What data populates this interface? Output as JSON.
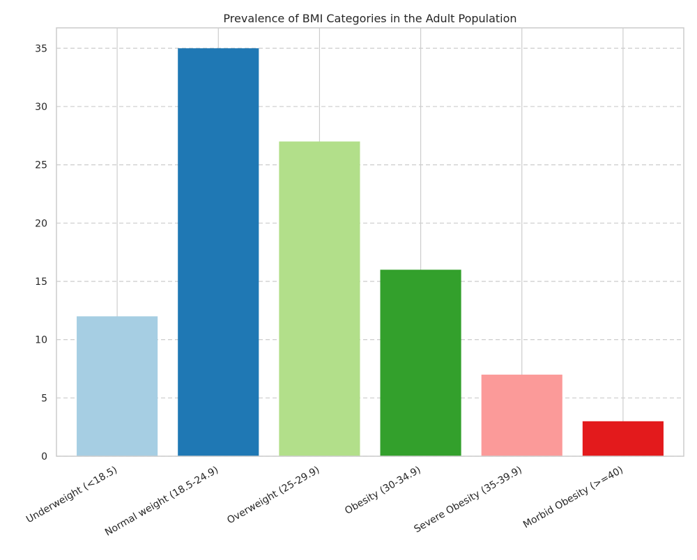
{
  "chart_data": {
    "type": "bar",
    "title": "Prevalence of BMI Categories in the Adult Population",
    "xlabel": "",
    "ylabel": "",
    "categories": [
      "Underweight (<18.5)",
      "Normal weight (18.5-24.9)",
      "Overweight (25-29.9)",
      "Obesity (30-34.9)",
      "Severe Obesity (35-39.9)",
      "Morbid Obesity (>=40)"
    ],
    "values": [
      12,
      35,
      27,
      16,
      7,
      3
    ],
    "colors": [
      "#a6cee3",
      "#1f78b4",
      "#b2df8a",
      "#33a02c",
      "#fb9a99",
      "#e31a1c"
    ],
    "ylim": [
      0,
      36.75
    ],
    "yticks": [
      0,
      5,
      10,
      15,
      20,
      25,
      30,
      35
    ],
    "grid": true,
    "grid_style": "dashed",
    "legend": "none"
  }
}
